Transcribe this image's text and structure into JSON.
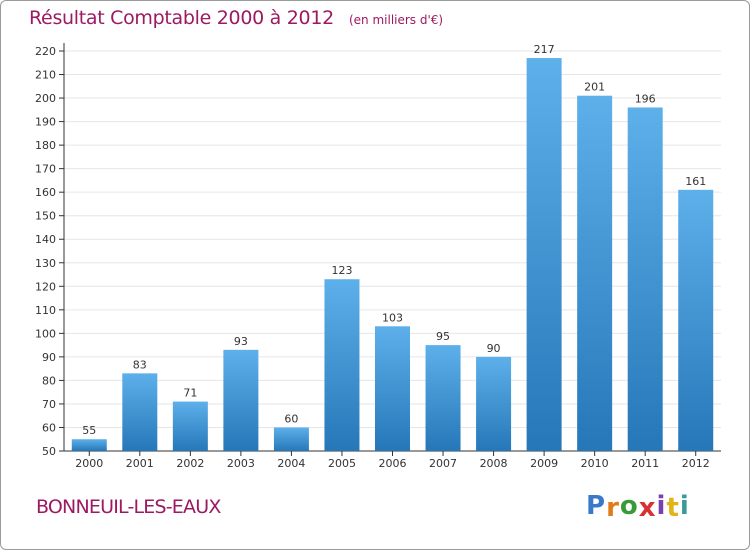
{
  "header": {
    "title": "Résultat Comptable 2000 à 2012",
    "unit": "(en milliers d'€)"
  },
  "footer": {
    "city": "BONNEUIL-LES-EAUX",
    "logo": {
      "letters": [
        "P",
        "r",
        "o",
        "x",
        "i",
        "t",
        "i"
      ],
      "colors": [
        "#3a78c9",
        "#e07d1a",
        "#3a9a3a",
        "#d93030",
        "#7a3fb0",
        "#e0b41a",
        "#3a9a9a"
      ]
    }
  },
  "colors": {
    "bar_top": "#5db0ea",
    "bar_bottom": "#2677b8",
    "title": "#9c1a63",
    "grid": "#e6e6e6",
    "axis": "#333333"
  },
  "chart_data": {
    "type": "bar",
    "title": "Résultat Comptable 2000 à 2012",
    "xlabel": "",
    "ylabel": "",
    "categories": [
      "2000",
      "2001",
      "2002",
      "2003",
      "2004",
      "2005",
      "2006",
      "2007",
      "2008",
      "2009",
      "2010",
      "2011",
      "2012"
    ],
    "values": [
      55,
      83,
      71,
      93,
      60,
      123,
      103,
      95,
      90,
      217,
      201,
      196,
      161
    ],
    "value_labels": [
      "55",
      "83",
      "71",
      "93",
      "60",
      "123",
      "103",
      "95",
      "90",
      "217",
      "201",
      "196",
      "161"
    ],
    "ylim": [
      50,
      220
    ],
    "yticks": [
      "50",
      "60",
      "70",
      "80",
      "90",
      "100",
      "110",
      "120",
      "130",
      "140",
      "150",
      "160",
      "170",
      "180",
      "190",
      "200",
      "210",
      "220"
    ],
    "grid": true
  }
}
